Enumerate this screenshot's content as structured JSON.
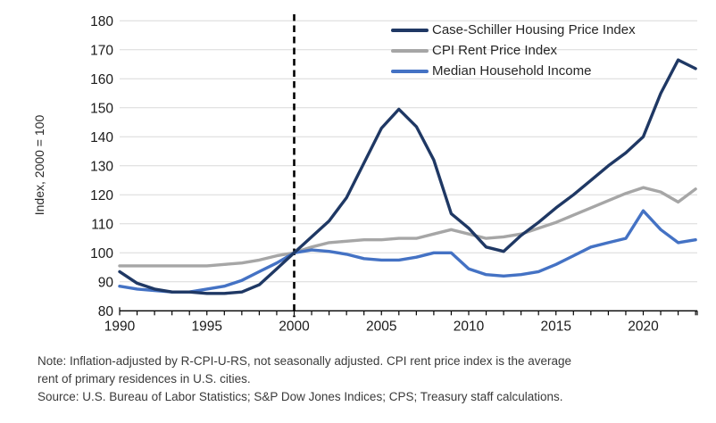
{
  "chart": {
    "y_axis_title": "Index, 2000 = 100",
    "y_ticks": [
      80,
      90,
      100,
      110,
      120,
      130,
      140,
      150,
      160,
      170,
      180
    ],
    "x_tick_labels": [
      1990,
      1995,
      2000,
      2005,
      2010,
      2015,
      2020
    ],
    "reference_line_year": 2000
  },
  "chart_data": {
    "type": "line",
    "x": [
      1990,
      1991,
      1992,
      1993,
      1994,
      1995,
      1996,
      1997,
      1998,
      1999,
      2000,
      2001,
      2002,
      2003,
      2004,
      2005,
      2006,
      2007,
      2008,
      2009,
      2010,
      2011,
      2012,
      2013,
      2014,
      2015,
      2016,
      2017,
      2018,
      2019,
      2020,
      2021,
      2022,
      2023
    ],
    "series": [
      {
        "name": "Case-Schiller Housing Price Index",
        "color": "#1f3864",
        "values": [
          93.5,
          89.5,
          87.5,
          86.5,
          86.5,
          86,
          86,
          86.5,
          89,
          94.5,
          100,
          105.5,
          111,
          119,
          131,
          143,
          149.5,
          143.5,
          132,
          113.5,
          108.5,
          102,
          100.5,
          106,
          110.5,
          115.5,
          120,
          125,
          130,
          134.5,
          140,
          155,
          166.5,
          163.5
        ]
      },
      {
        "name": "CPI Rent Price Index",
        "color": "#a6a6a6",
        "values": [
          95.5,
          95.5,
          95.5,
          95.5,
          95.5,
          95.5,
          96,
          96.5,
          97.5,
          99,
          100,
          102,
          103.5,
          104,
          104.5,
          104.5,
          105,
          105,
          106.5,
          108,
          106.5,
          105,
          105.5,
          106.5,
          108.5,
          110.5,
          113,
          115.5,
          118,
          120.5,
          122.5,
          121,
          117.5,
          122
        ]
      },
      {
        "name": "Median Household Income",
        "color": "#4472c4",
        "values": [
          88.5,
          87.5,
          87,
          86.5,
          86.5,
          87.5,
          88.5,
          90.5,
          93.5,
          96.5,
          100,
          101,
          100.5,
          99.5,
          98,
          97.5,
          97.5,
          98.5,
          100,
          100,
          94.5,
          92.5,
          92,
          92.5,
          93.5,
          96,
          99,
          102,
          103.5,
          105,
          114.5,
          108,
          103.5,
          104.5
        ]
      }
    ],
    "title": "",
    "xlabel": "",
    "ylabel": "Index, 2000 = 100",
    "ylim": [
      80,
      180
    ],
    "xlim": [
      1990,
      2023
    ],
    "grid": true,
    "legend_position": "top-right",
    "reference_line_x": 2000
  },
  "notes": {
    "note_line1": "Note: Inflation-adjusted by R-CPI-U-RS, not seasonally adjusted. CPI rent price index is the average",
    "note_line2": "rent of primary residences in U.S. cities.",
    "source": "Source: U.S. Bureau of Labor Statistics; S&P Dow Jones Indices; CPS; Treasury staff calculations."
  },
  "colors": {
    "gridline": "#d9d9d9",
    "axis": "#000000",
    "tick_text": "#1a1a1a",
    "axis_title_text": "#262626",
    "reference_line": "#000000"
  }
}
